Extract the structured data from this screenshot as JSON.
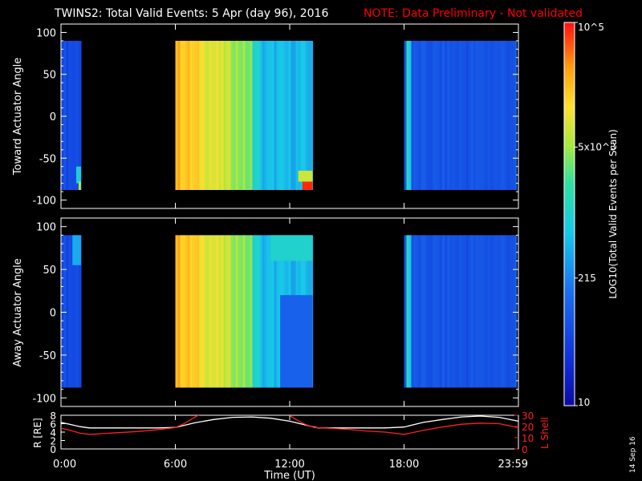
{
  "header": {
    "title": "TWINS2: Total Valid Events:  5 Apr (day  96), 2016",
    "note": "NOTE: Data Preliminary - Not validated",
    "note_color": "#ff0000",
    "date_stamp": "14 Sep 16"
  },
  "colorbar": {
    "label": "LOG10(Total Valid Events per Scan)",
    "ticks": [
      "10^5",
      "5x10^3",
      "215",
      "10"
    ],
    "tick_values": [
      100000,
      5000,
      215,
      10
    ],
    "range": [
      10,
      100000
    ],
    "scale": "log"
  },
  "chart_data": [
    {
      "type": "heatmap",
      "title": "",
      "ylabel": "Toward Actuator Angle",
      "xlabel": "",
      "ylim": [
        -110,
        110
      ],
      "yticks": [
        100,
        50,
        0,
        -50,
        -100
      ],
      "xlim_hours": [
        0,
        24
      ],
      "data_yrange": [
        -88,
        90
      ],
      "segments": [
        {
          "start_hour": 0.0,
          "end_hour": 1.05,
          "base_level": 0.2,
          "notes": "blue, rising to cyan/yellow near -85 deg at end"
        },
        {
          "start_hour": 6.0,
          "end_hour": 13.2,
          "base_level": 0.7,
          "notes": "orange/yellow early, green/cyan later, red near -85 deg at 12.5-13.2 h"
        },
        {
          "start_hour": 18.0,
          "end_hour": 23.9,
          "base_level": 0.22,
          "notes": "blue with cyan stripe near 18.2 h"
        }
      ]
    },
    {
      "type": "heatmap",
      "title": "",
      "ylabel": "Away Actuator Angle",
      "xlabel": "",
      "ylim": [
        -110,
        110
      ],
      "yticks": [
        100,
        50,
        0,
        -50,
        -100
      ],
      "xlim_hours": [
        0,
        24
      ],
      "data_yrange": [
        -88,
        90
      ],
      "segments": [
        {
          "start_hour": 0.0,
          "end_hour": 1.05,
          "base_level": 0.2,
          "notes": "blue with cyan near +90 deg"
        },
        {
          "start_hour": 6.0,
          "end_hour": 13.2,
          "base_level": 0.7,
          "notes": "orange/yellow early, cyan/green later, blue lower-right"
        },
        {
          "start_hour": 18.0,
          "end_hour": 23.9,
          "base_level": 0.22,
          "notes": "blue with cyan stripe near 18.2 h"
        }
      ]
    },
    {
      "type": "line",
      "title": "",
      "xlabel": "Time (UT)",
      "ylabel_left": "R [RE]",
      "ylabel_right": "L Shell",
      "ylim_left": [
        0,
        8
      ],
      "ylim_right": [
        0,
        30
      ],
      "yticks_left": [
        0,
        2,
        4,
        6,
        8
      ],
      "yticks_right": [
        0,
        10,
        20,
        30
      ],
      "x_tick_labels": [
        "0:00",
        "6:00",
        "12:00",
        "18:00",
        "23:59"
      ],
      "x_tick_hours": [
        0,
        6,
        12,
        18,
        24
      ],
      "series": [
        {
          "name": "R",
          "color": "#ffffff",
          "x": [
            0,
            0.5,
            1,
            1.5,
            2,
            3,
            4,
            5,
            6,
            7,
            8,
            9,
            10,
            11,
            12,
            13,
            13.5,
            14,
            15,
            16,
            17,
            18,
            19,
            20,
            21,
            22,
            23,
            24
          ],
          "y": [
            6.3,
            5.8,
            5.3,
            5.0,
            5.0,
            5.0,
            5.0,
            5.0,
            5.1,
            6.2,
            7.0,
            7.5,
            7.6,
            7.3,
            6.6,
            5.5,
            5.0,
            5.0,
            5.0,
            5.0,
            5.0,
            5.2,
            6.3,
            7.0,
            7.6,
            7.8,
            7.5,
            6.6
          ]
        },
        {
          "name": "L Shell",
          "color": "#ff2020",
          "x": [
            0,
            0.5,
            1,
            1.5,
            2,
            3,
            4,
            5,
            6,
            6.4,
            6.8,
            7.3,
            11.9,
            12.3,
            12.8,
            13.3,
            14,
            15,
            16,
            17,
            18,
            19,
            20,
            21,
            22,
            23,
            24
          ],
          "y": [
            18.5,
            16.5,
            14.0,
            13.0,
            13.5,
            14.5,
            15.5,
            17.0,
            19.0,
            22.0,
            26.0,
            31.0,
            31.0,
            26.5,
            22.0,
            19.0,
            18.5,
            17.5,
            16.0,
            15.0,
            13.0,
            16.5,
            19.5,
            22.0,
            23.0,
            22.5,
            19.0
          ]
        }
      ]
    }
  ]
}
